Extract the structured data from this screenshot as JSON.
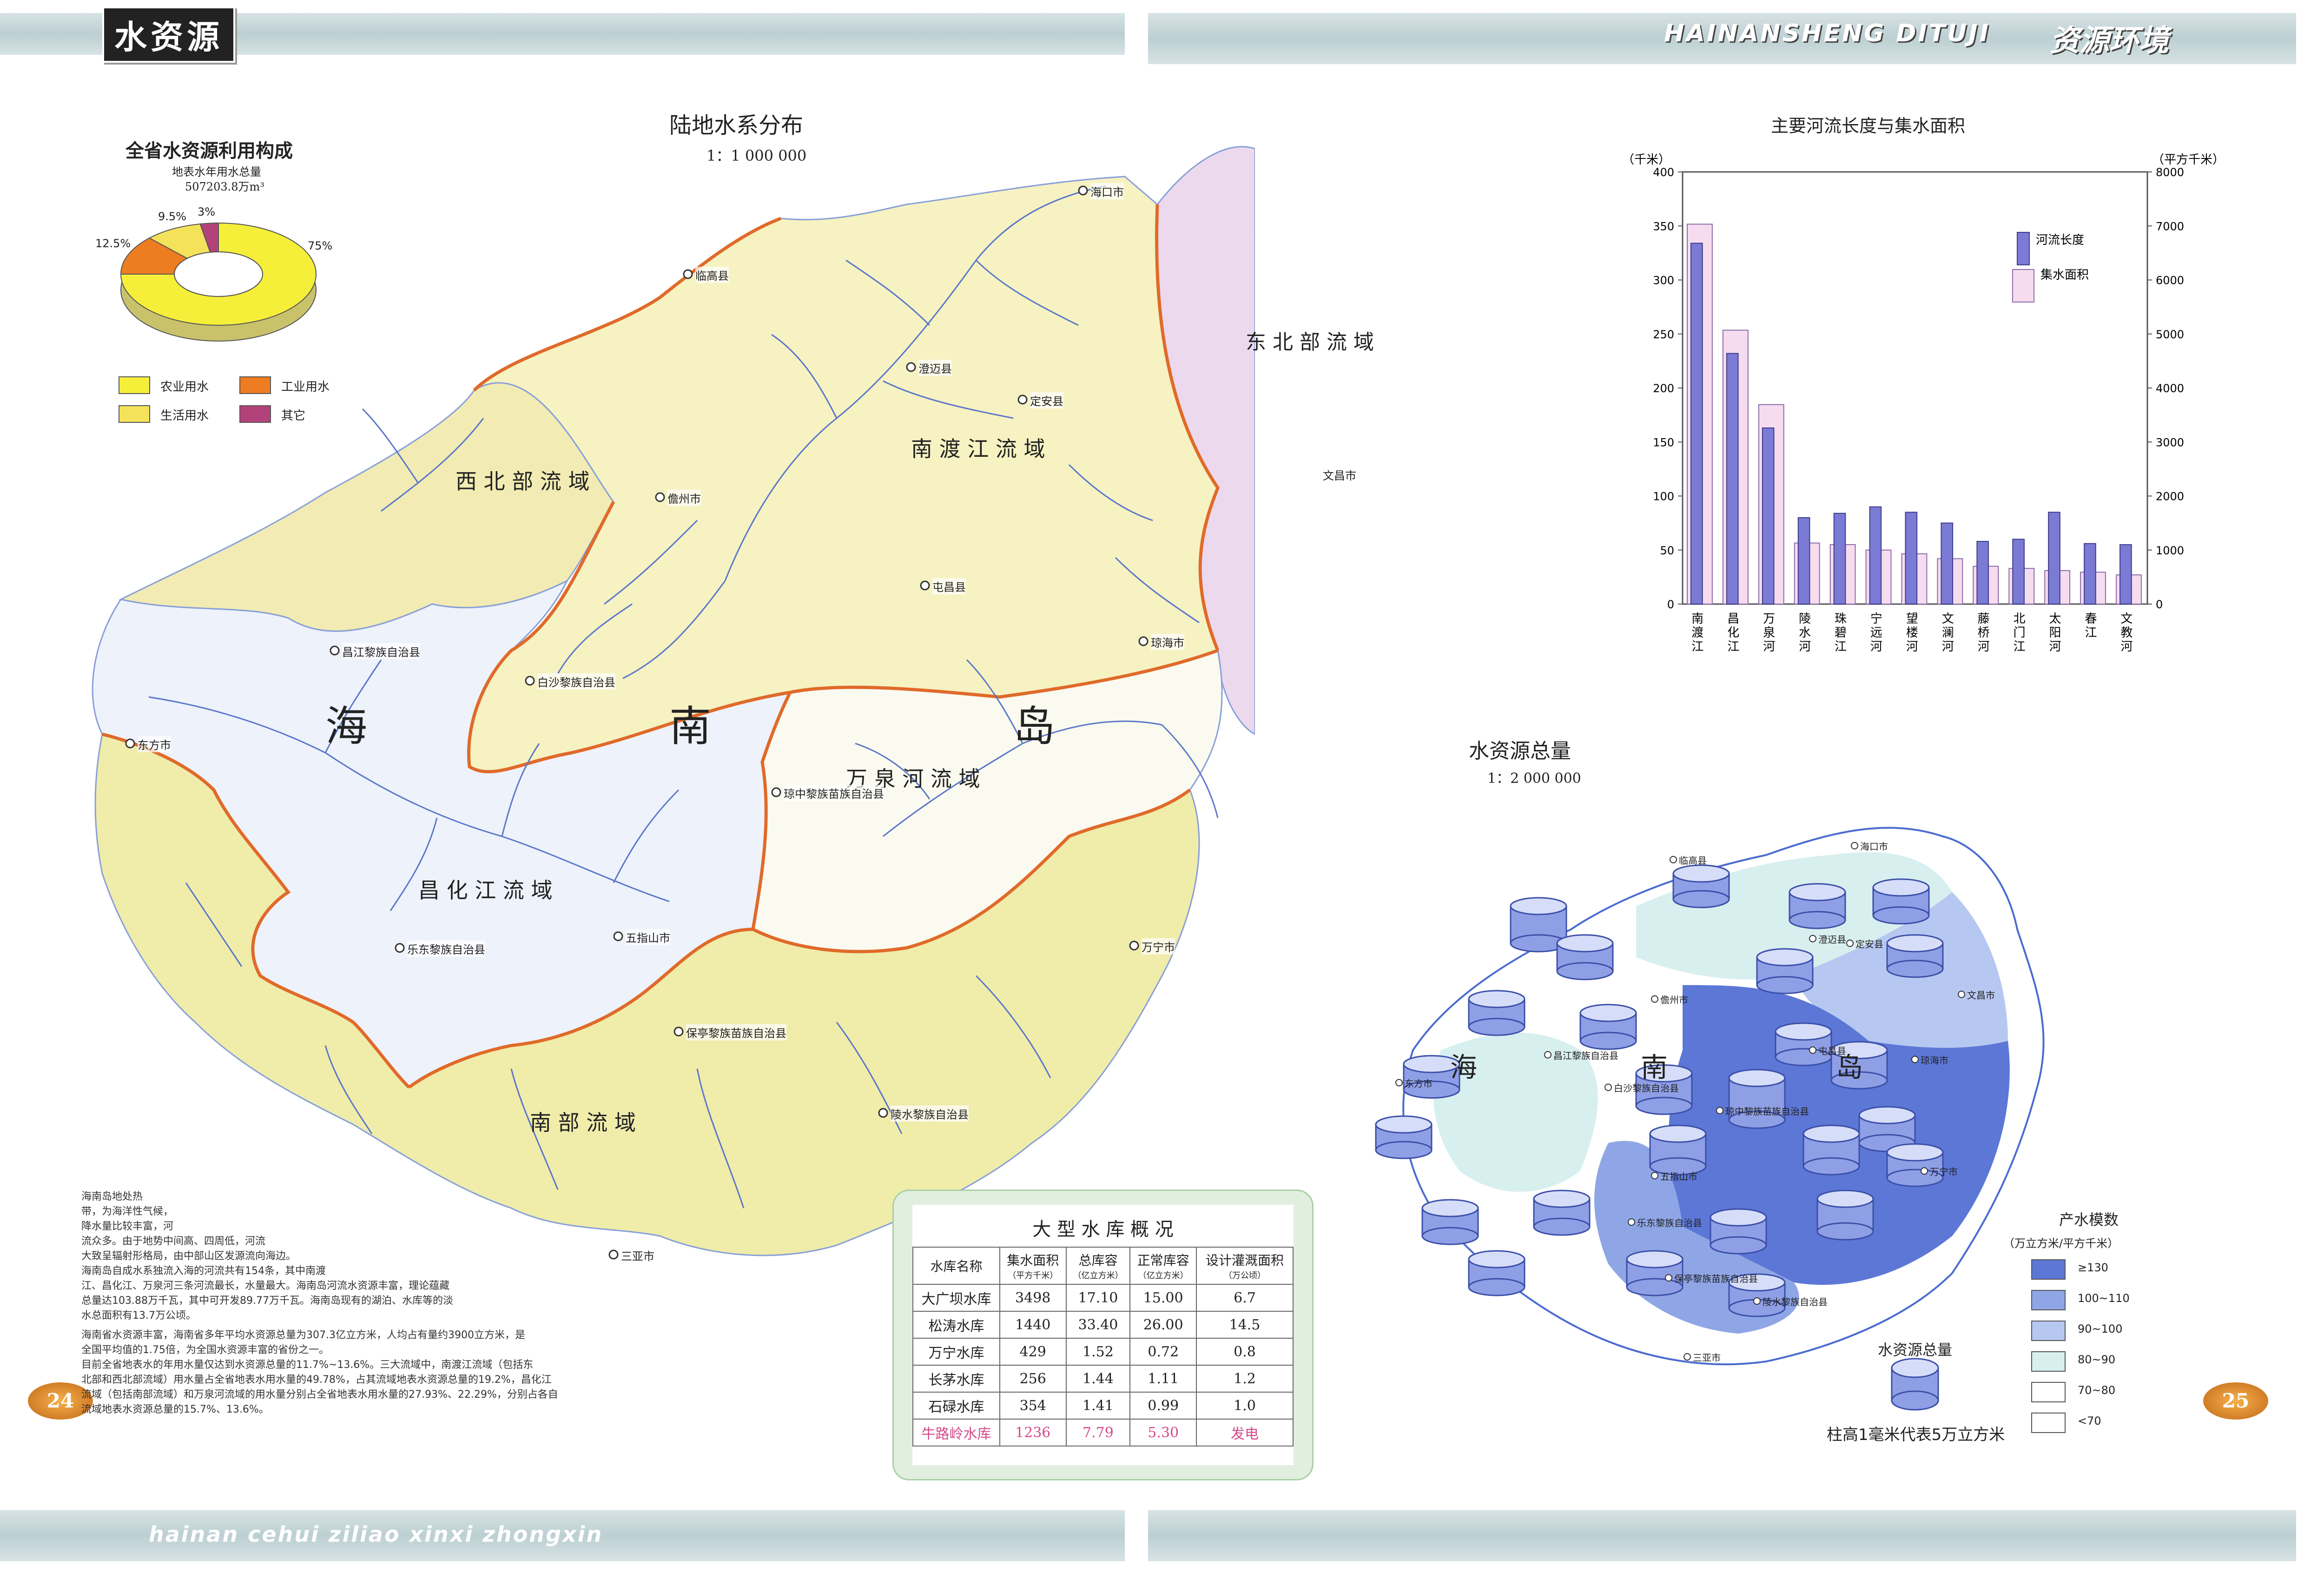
{
  "header": {
    "left_title": "水资源",
    "right_latin": "HAINANSHENG DITUJI",
    "right_title": "资源环境",
    "footer_left": "hainan cehui ziliao xinxi zhongxin",
    "page_left": "24",
    "page_right": "25"
  },
  "colors": {
    "northwest": "#f2ebb3",
    "nandu": "#f6f2c2",
    "northeast": "#ecd9ee",
    "wanquan": "#fbfaf0",
    "changhua": "#eef2fb",
    "south": "#f0ecaa",
    "river": "#5a77c9",
    "boundary": "#e06a2a",
    "sea": "#ffffff"
  },
  "main_map": {
    "title": "陆地水系分布",
    "scale": "1：1 000 000",
    "island_name": [
      "海",
      "南",
      "岛"
    ],
    "basins": [
      {
        "name": "西北部流域",
        "label_spaced": "西 北 部 流 域"
      },
      {
        "name": "南渡江流域",
        "label_spaced": "南 渡 江 流 域"
      },
      {
        "name": "东北部流域",
        "label_spaced": "东 北 部 流 域"
      },
      {
        "name": "万泉河流域",
        "label_spaced": "万 泉 河 流 域"
      },
      {
        "name": "昌化江流域",
        "label_spaced": "昌 化 江 流 域"
      },
      {
        "name": "南部流域",
        "label_spaced": "南 部 流 域"
      }
    ],
    "cities": [
      "海口市",
      "临高县",
      "澄迈县",
      "定安县",
      "儋州市",
      "文昌市",
      "屯昌县",
      "琼海市",
      "昌江黎族自治县",
      "白沙黎族自治县",
      "东方市",
      "琼中黎族苗族自治县",
      "万宁市",
      "乐东黎族自治县",
      "五指山市",
      "保亭黎族苗族自治县",
      "陵水黎族自治县",
      "三亚市"
    ]
  },
  "pie": {
    "title": "全省水资源利用构成",
    "subtitle1": "地表水年用水总量",
    "subtitle2": "507203.8万m³",
    "slices": [
      {
        "label": "农业用水",
        "pct": 75,
        "pct_text": "75%",
        "color": "#f5ef3a"
      },
      {
        "label": "工业用水",
        "pct": 12.5,
        "pct_text": "12.5%",
        "color": "#ee7d22"
      },
      {
        "label": "生活用水",
        "pct": 9.5,
        "pct_text": "9.5%",
        "color": "#f4e25a"
      },
      {
        "label": "其它",
        "pct": 3,
        "pct_text": "3%",
        "color": "#b4427a"
      }
    ]
  },
  "intro_text": [
    "海南岛地处热",
    "带，为海洋性气候，",
    "降水量比较丰富，河",
    "流众多。由于地势中间高、四周低，河流",
    "大致呈辐射形格局，由中部山区发源流向海边。",
    "海南岛自成水系独流入海的河流共有154条，其中南渡",
    "江、昌化江、万泉河三条河流最长，水量最大。海南岛河流水资源丰富，理论蕴藏",
    "总量达103.88万千瓦，其中可开发89.77万千瓦。海南岛现有的湖泊、水库等的淡",
    "水总面积有13.7万公顷。",
    "海南省水资源丰富，海南省多年平均水资源总量为307.3亿立方米，人均占有量约3900立方米，是",
    "全国平均值的1.75倍，为全国水资源丰富的省份之一。",
    "目前全省地表水的年用水量仅达到水资源总量的11.7%~13.6%。三大流域中，南渡江流域（包括东",
    "北部和西北部流域）用水量占全省地表水用水量的49.78%，占其流域地表水资源总量的19.2%，昌化江",
    "流域（包括南部流域）和万泉河流域的用水量分别占全省地表水用水量的27.93%、22.29%，分别占各自",
    "流域地表水资源总量的15.7%、13.6%。"
  ],
  "reservoir": {
    "title": "大 型 水 库 概 况",
    "headers": [
      {
        "main": "水库名称",
        "sub": ""
      },
      {
        "main": "集水面积",
        "sub": "（平方千米）"
      },
      {
        "main": "总库容",
        "sub": "（亿立方米）"
      },
      {
        "main": "正常库容",
        "sub": "（亿立方米）"
      },
      {
        "main": "设计灌溉面积",
        "sub": "（万公顷）"
      }
    ],
    "rows": [
      [
        "大广坝水库",
        "3498",
        "17.10",
        "15.00",
        "6.7"
      ],
      [
        "松涛水库",
        "1440",
        "33.40",
        "26.00",
        "14.5"
      ],
      [
        "万宁水库",
        "429",
        "1.52",
        "0.72",
        "0.8"
      ],
      [
        "长茅水库",
        "256",
        "1.44",
        "1.11",
        "1.2"
      ],
      [
        "石碌水库",
        "354",
        "1.41",
        "0.99",
        "1.0"
      ],
      [
        "牛路岭水库",
        "1236",
        "7.79",
        "5.30",
        "发电"
      ]
    ]
  },
  "chart_data": {
    "type": "bar",
    "title": "主要河流长度与集水面积",
    "ylabel_left": "（千米）",
    "ylabel_right": "（平方千米）",
    "ylim_left": [
      0,
      400
    ],
    "ylim_right": [
      0,
      8000
    ],
    "yticks_left": [
      "0",
      "50",
      "100",
      "150",
      "200",
      "250",
      "300",
      "350",
      "400"
    ],
    "yticks_right": [
      "0",
      "1000",
      "2000",
      "3000",
      "4000",
      "5000",
      "6000",
      "7000",
      "8000"
    ],
    "categories": [
      "南渡江",
      "昌化江",
      "万泉河",
      "陵水河",
      "珠碧江",
      "宁远河",
      "望楼河",
      "文澜河",
      "藤桥河",
      "北门江",
      "太阳河",
      "春江",
      "文教河"
    ],
    "series": [
      {
        "name": "河流长度",
        "axis": "left",
        "color": "#7b7bd6",
        "values": [
          334,
          232,
          163,
          80,
          84,
          90,
          85,
          75,
          58,
          60,
          85,
          56,
          55
        ]
      },
      {
        "name": "集水面积",
        "axis": "right",
        "color": "#f6dcef",
        "values": [
          7033,
          5070,
          3693,
          1130,
          1101,
          1000,
          930,
          840,
          700,
          660,
          620,
          590,
          540
        ]
      }
    ],
    "legend": "top-right",
    "grid": false
  },
  "total_map": {
    "title": "水资源总量",
    "scale": "1：2 000 000",
    "island_name": [
      "海",
      "南",
      "岛"
    ],
    "legend_title": "产水模数",
    "legend_unit": "（万立方米/平方千米）",
    "legend_items": [
      {
        "label": "≥130",
        "color": "#5c77d6"
      },
      {
        "label": "100~110",
        "color": "#8fa6e6"
      },
      {
        "label": "90~100",
        "color": "#b6c8f1"
      },
      {
        "label": "80~90",
        "color": "#d8efef"
      },
      {
        "label": "70~80",
        "color": "#ffffff"
      },
      {
        "label": "<70",
        "color": "#ffffff"
      }
    ],
    "cylinder_title": "水资源总量",
    "cylinder_note": "柱高1毫米代表5万立方米",
    "cities": [
      "海口市",
      "临高县",
      "澄迈县",
      "定安县",
      "儋州市",
      "文昌市",
      "屯昌县",
      "琼海市",
      "昌江黎族自治县",
      "白沙黎族自治县",
      "东方市",
      "琼中黎族苗族自治县",
      "五指山市",
      "万宁市",
      "乐东黎族自治县",
      "保亭黎族苗族自治县",
      "陵水黎族自治县",
      "三亚市"
    ]
  }
}
